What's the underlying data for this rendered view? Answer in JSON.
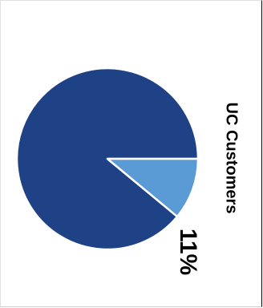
{
  "chart_data": {
    "type": "pie",
    "title": "UC Customers",
    "slices": [
      {
        "value": 89,
        "color": "#1f4287"
      },
      {
        "value": 11,
        "color": "#5b9bd5",
        "label": "11%"
      }
    ],
    "legend": "none",
    "orientation": "rotated 90° clockwise"
  }
}
